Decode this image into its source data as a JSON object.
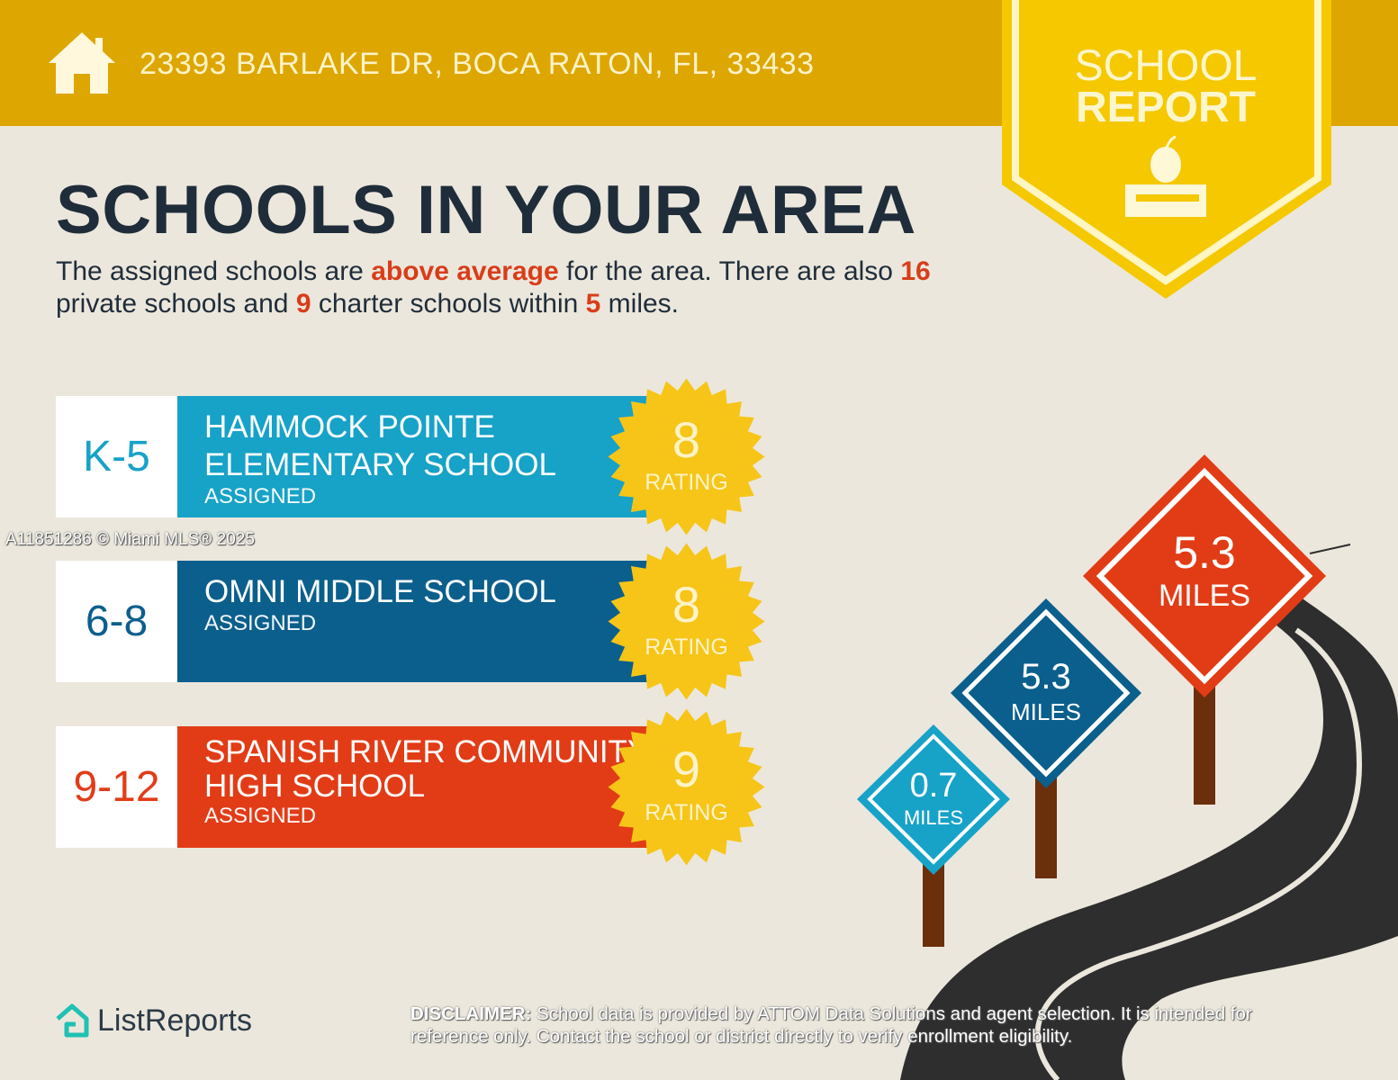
{
  "header": {
    "address": "23393 BARLAKE DR, BOCA RATON, FL, 33433",
    "icon": "house-icon",
    "color": "#dea600"
  },
  "banner": {
    "line1": "SCHOOL",
    "line2": "REPORT",
    "icon": "apple-on-book-icon",
    "color": "#f5c800"
  },
  "title": "SCHOOLS IN YOUR AREA",
  "intro": {
    "t1": "The assigned schools are ",
    "h1": "above average",
    "t2": " for the area. There are also ",
    "h2": "16",
    "t3": " private schools and ",
    "h3": "9",
    "t4": " charter schools within ",
    "h4": "5",
    "t5": " miles."
  },
  "schools": [
    {
      "grade": "K-5",
      "name_line1": "HAMMOCK POINTE",
      "name_line2": "ELEMENTARY SCHOOL",
      "status": "ASSIGNED",
      "rating": "8",
      "rating_label": "RATING",
      "color": "#17a2c8",
      "distance": "0.7",
      "distance_unit": "MILES"
    },
    {
      "grade": "6-8",
      "name_line1": "OMNI MIDDLE SCHOOL",
      "name_line2": "",
      "status": "ASSIGNED",
      "rating": "8",
      "rating_label": "RATING",
      "color": "#0b5f8c",
      "distance": "5.3",
      "distance_unit": "MILES"
    },
    {
      "grade": "9-12",
      "name_line1": "SPANISH RIVER COMMUNITY",
      "name_line2": "HIGH SCHOOL",
      "status": "ASSIGNED",
      "rating": "9",
      "rating_label": "RATING",
      "color": "#e23c17",
      "distance": "5.3",
      "distance_unit": "MILES"
    }
  ],
  "watermark": "A11851286 © Miami MLS® 2025",
  "logo": {
    "text": "ListReports",
    "icon": "listreports-house-icon"
  },
  "disclaimer": {
    "label": "DISCLAIMER:",
    "text": " School data is provided by ATTOM Data Solutions and agent selection. It is intended for reference only. Contact the school or district directly to verify enrollment eligibility."
  }
}
